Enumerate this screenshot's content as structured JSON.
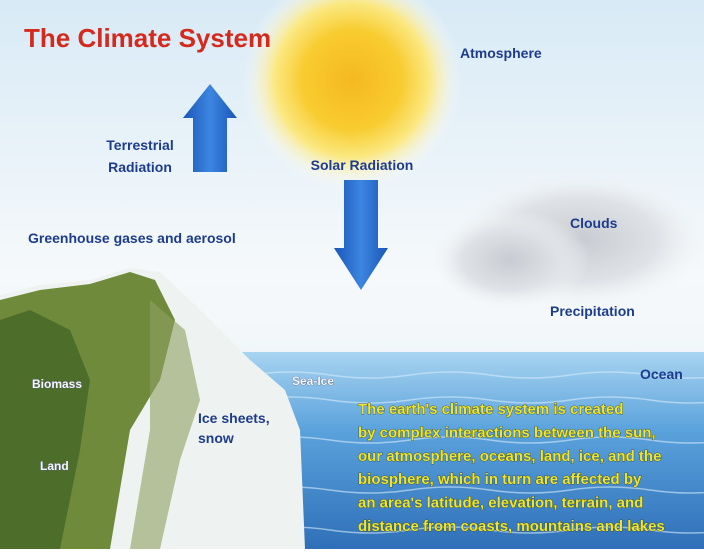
{
  "title": "The Climate System",
  "labels": {
    "atmosphere": "Atmosphere",
    "terrestrial_radiation": [
      "Terrestrial",
      "Radiation"
    ],
    "solar_radiation": "Solar Radiation",
    "greenhouse": "Greenhouse gases and aerosol",
    "clouds": "Clouds",
    "precipitation": "Precipitation",
    "ocean": "Ocean",
    "sea_ice": "Sea-Ice",
    "ice_sheets": [
      "Ice sheets,",
      "snow"
    ],
    "biomass": "Biomass",
    "land": "Land"
  },
  "description": [
    "The earth's climate system is created",
    "by complex interactions between the sun,",
    "our atmosphere, oceans, land, ice, and the",
    "biosphere, which in turn are affected by",
    "an area's latitude, elevation, terrain, and",
    "distance from coasts, mountains and lakes"
  ]
}
